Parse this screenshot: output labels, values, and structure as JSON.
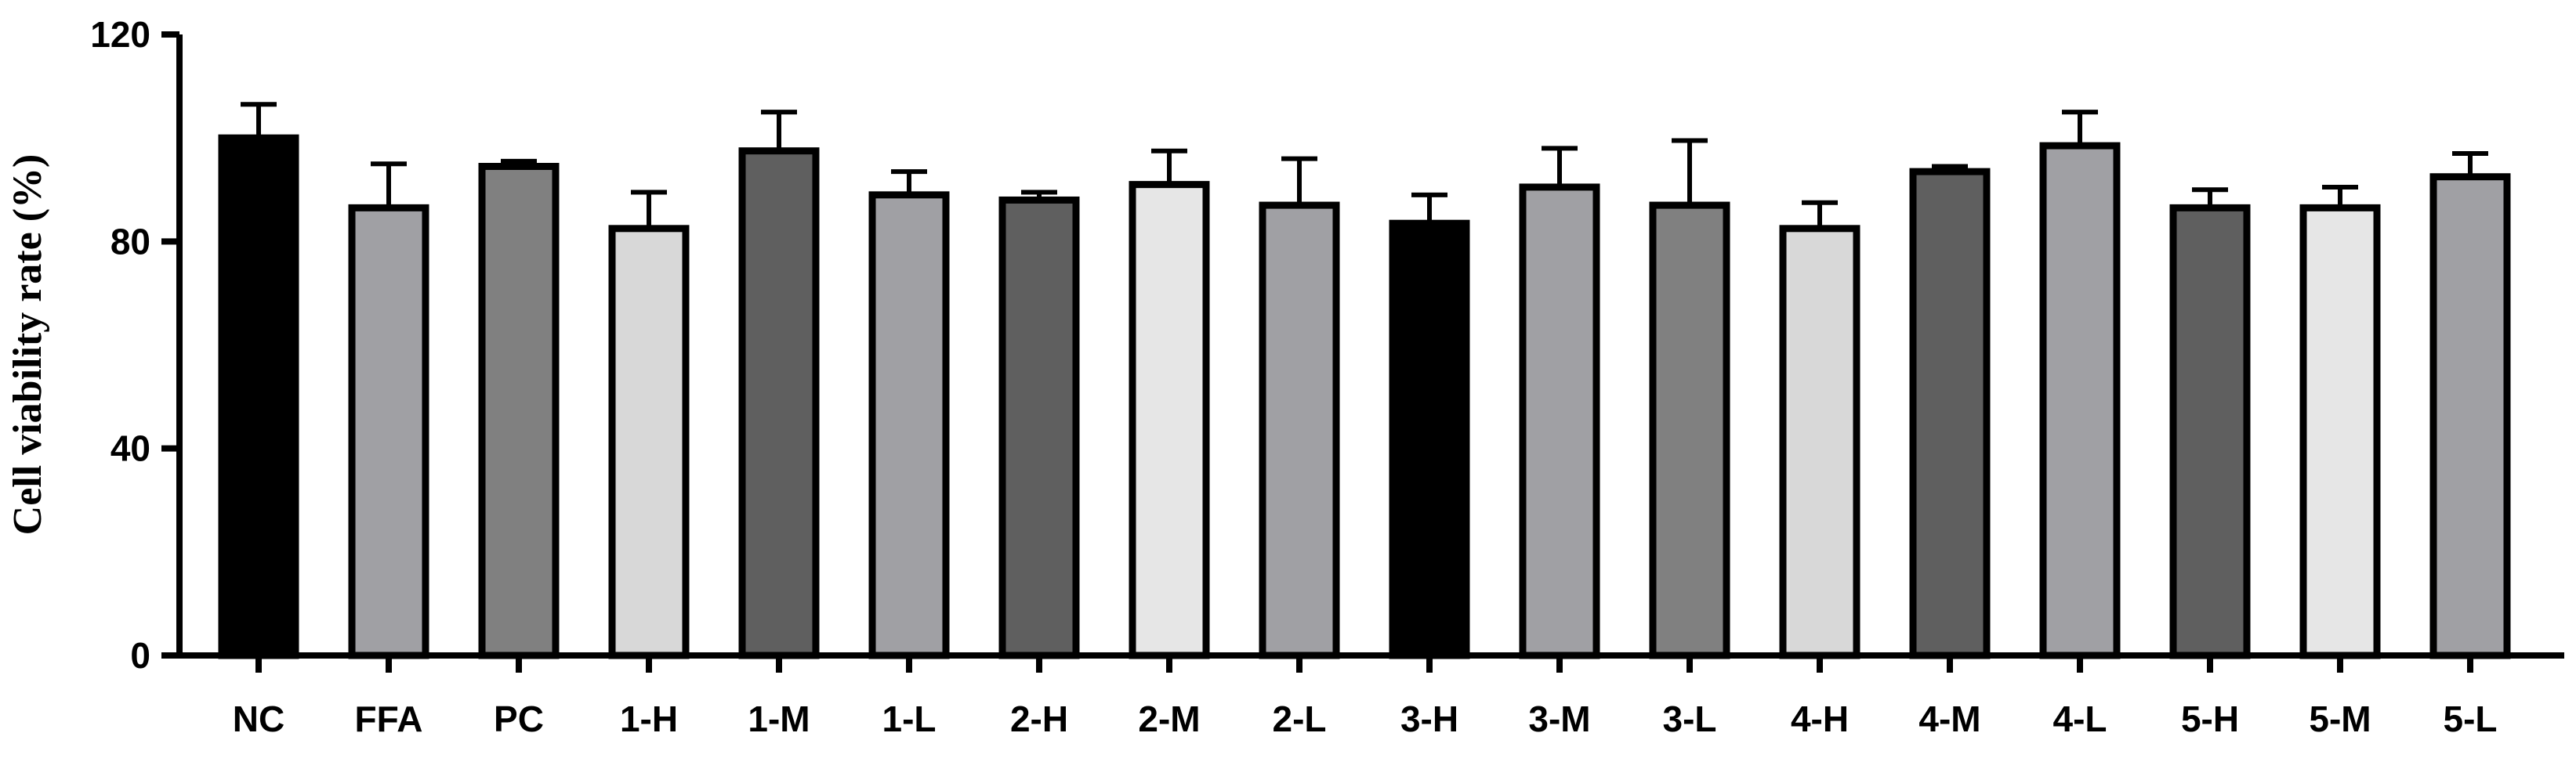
{
  "chart_data": {
    "type": "bar",
    "title": "",
    "xlabel": "",
    "ylabel": "Cell viability rate (%)",
    "ylim": [
      0,
      120
    ],
    "yticks": [
      0,
      40,
      80,
      120
    ],
    "grid": false,
    "categories": [
      "NC",
      "FFA",
      "PC",
      "1-H",
      "1-M",
      "1-L",
      "2-H",
      "2-M",
      "2-L",
      "3-H",
      "3-M",
      "3-L",
      "4-H",
      "4-M",
      "4-L",
      "5-H",
      "5-M",
      "5-L"
    ],
    "values": [
      100,
      86.5,
      94.5,
      82.5,
      97.5,
      89,
      88,
      91,
      87,
      83.5,
      90.5,
      87,
      82.5,
      93.5,
      98.5,
      86.5,
      86.5,
      92.5
    ],
    "errors": [
      6.5,
      8.5,
      1,
      7,
      7.5,
      4.5,
      1.5,
      6.5,
      9,
      5.5,
      7.5,
      12.5,
      5,
      1,
      6.5,
      3.5,
      4,
      4.5
    ],
    "bar_colors": [
      "#000000",
      "#a0a0a4",
      "#808080",
      "#d8d8d8",
      "#5f5f5f",
      "#a0a0a4",
      "#5f5f5f",
      "#e6e6e6",
      "#a0a0a4",
      "#000000",
      "#a0a0a4",
      "#808080",
      "#d8d8d8",
      "#5f5f5f",
      "#a0a0a4",
      "#5f5f5f",
      "#e6e6e6",
      "#a0a0a4"
    ],
    "edge_color": "#000000"
  }
}
